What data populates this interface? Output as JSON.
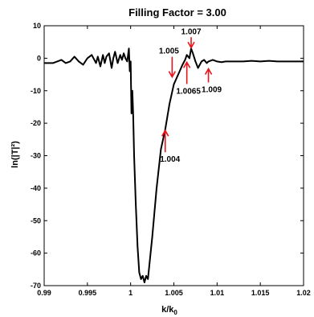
{
  "chart_data": {
    "type": "line",
    "title": "Filling Factor = 3.00",
    "xlabel_main": "k/k",
    "xlabel_sub": "0",
    "ylabel": "ln(|T|²)",
    "xlim": [
      0.99,
      1.02
    ],
    "ylim": [
      -70,
      10
    ],
    "xticks": [
      0.99,
      0.995,
      1,
      1.005,
      1.01,
      1.015,
      1.02
    ],
    "xtick_labels": [
      "0.99",
      "0.995",
      "1",
      "1.005",
      "1.01",
      "1.015",
      "1.02"
    ],
    "yticks": [
      10,
      0,
      -10,
      -20,
      -30,
      -40,
      -50,
      -60,
      -70
    ],
    "ytick_labels": [
      "10",
      "0",
      "-10",
      "-20",
      "-30",
      "-40",
      "-50",
      "-60",
      "-70"
    ],
    "grid": false,
    "series": [
      {
        "color": "#000000",
        "x": [
          0.99,
          0.991,
          0.9915,
          0.992,
          0.9925,
          0.993,
          0.9935,
          0.994,
          0.9945,
          0.995,
          0.9955,
          0.996,
          0.9962,
          0.9965,
          0.9968,
          0.997,
          0.9972,
          0.9975,
          0.9978,
          0.998,
          0.9982,
          0.9985,
          0.9988,
          0.999,
          0.9992,
          0.9994,
          0.9996,
          0.9998,
          0.9999,
          1.0,
          1.0001,
          1.0002,
          1.0003,
          1.0004,
          1.0006,
          1.0008,
          1.001,
          1.0012,
          1.0014,
          1.0016,
          1.0018,
          1.002,
          1.0025,
          1.003,
          1.0035,
          1.004,
          1.0045,
          1.005,
          1.0055,
          1.006,
          1.0063,
          1.0065,
          1.0068,
          1.007,
          1.0072,
          1.0075,
          1.0078,
          1.008,
          1.0082,
          1.0085,
          1.0088,
          1.009,
          1.0095,
          1.01,
          1.0105,
          1.011,
          1.012,
          1.013,
          1.014,
          1.015,
          1.016,
          1.017,
          1.018,
          1.019,
          1.02
        ],
        "y": [
          -1.5,
          -1.5,
          -1,
          -0.5,
          -1.5,
          -1,
          0.5,
          -1,
          -2,
          0,
          1,
          -1.5,
          0.5,
          -2.5,
          1,
          -1.5,
          0.5,
          1.5,
          -3,
          0,
          2,
          -1.5,
          1,
          -0.5,
          1.5,
          0,
          -1,
          3,
          -4,
          -1,
          -17,
          -10,
          -18,
          -30,
          -45,
          -58,
          -66,
          -68,
          -67,
          -69,
          -67,
          -68,
          -55,
          -40,
          -28,
          -22,
          -14,
          -8,
          -5,
          -2,
          -0.5,
          1,
          0,
          3,
          1.5,
          -1,
          -3,
          -2,
          -1,
          -0.5,
          -1.5,
          -1,
          -0.5,
          -1,
          -1.2,
          -1,
          -1,
          -1,
          -0.8,
          -1,
          -0.8,
          -1,
          -1,
          -1,
          -1
        ]
      }
    ],
    "annotations": [
      {
        "label": "1.005",
        "x": 1.0048,
        "y": -6
      },
      {
        "label": "1.007",
        "x": 1.007,
        "y": 3
      },
      {
        "label": "1.0065",
        "x": 1.0065,
        "y": -1
      },
      {
        "label": "1.009",
        "x": 1.009,
        "y": -3
      },
      {
        "label": "1.004",
        "x": 1.004,
        "y": -22
      }
    ],
    "arrow_color": "#e8141c"
  }
}
